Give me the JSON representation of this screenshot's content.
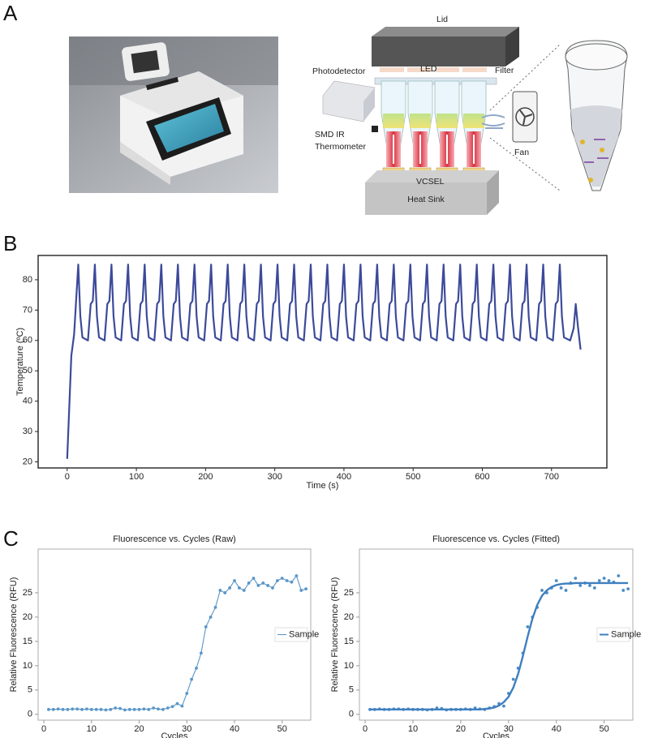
{
  "figure": {
    "panels": [
      "A",
      "B",
      "C"
    ],
    "diagram": {
      "lid": "Lid",
      "led": "LED",
      "filter": "Filter",
      "photodetector": "Photodetector",
      "thermometer": [
        "SMD IR",
        "Thermometer"
      ],
      "fan": "Fan",
      "vcsel": "VCSEL",
      "heat_sink": "Heat Sink"
    }
  },
  "chart_data": [
    {
      "type": "line",
      "xlabel": "Time (s)",
      "ylabel": "Temperature (ºC)",
      "xlim": [
        -42,
        780
      ],
      "xticks": [
        0,
        100,
        200,
        300,
        400,
        500,
        600,
        700
      ],
      "ylim": [
        18,
        88
      ],
      "yticks": [
        20,
        30,
        40,
        50,
        60,
        70,
        80
      ],
      "x": [
        0,
        6,
        10,
        16,
        19,
        22,
        30,
        34,
        37,
        40,
        43,
        46,
        54,
        58,
        61,
        64,
        67,
        70,
        78,
        82,
        85,
        88,
        91,
        94,
        102,
        106,
        109,
        112,
        115,
        118,
        126,
        130,
        133,
        136,
        139,
        142,
        150,
        154,
        157,
        160,
        163,
        166,
        174,
        178,
        181,
        184,
        187,
        190,
        198,
        202,
        205,
        208,
        211,
        214,
        222,
        226,
        229,
        232,
        235,
        238,
        246,
        250,
        253,
        256,
        259,
        262,
        270,
        274,
        277,
        280,
        283,
        286,
        294,
        298,
        301,
        304,
        307,
        310,
        318,
        322,
        325,
        328,
        331,
        334,
        342,
        346,
        349,
        352,
        355,
        358,
        366,
        370,
        373,
        376,
        379,
        382,
        390,
        394,
        397,
        400,
        403,
        406,
        414,
        418,
        421,
        424,
        427,
        430,
        438,
        442,
        445,
        448,
        451,
        454,
        462,
        466,
        469,
        472,
        475,
        478,
        486,
        490,
        493,
        496,
        499,
        502,
        510,
        514,
        517,
        520,
        523,
        526,
        534,
        538,
        541,
        544,
        547,
        550,
        558,
        562,
        565,
        568,
        571,
        574,
        582,
        586,
        589,
        592,
        595,
        598,
        606,
        610,
        613,
        616,
        619,
        622,
        630,
        634,
        637,
        640,
        643,
        646,
        654,
        658,
        661,
        664,
        667,
        670,
        678,
        682,
        685,
        688,
        691,
        694,
        702,
        706,
        709,
        712,
        715,
        718,
        727,
        732,
        735,
        738,
        742
      ],
      "series": [
        {
          "color": "#3c4a9a",
          "line": true,
          "marker": false,
          "values": [
            21,
            55,
            62,
            85,
            68,
            61,
            60,
            72,
            73,
            85,
            68,
            61,
            60,
            72,
            73,
            85,
            68,
            61,
            60,
            72,
            73,
            85,
            68,
            61,
            60,
            72,
            73,
            85,
            68,
            61,
            60,
            72,
            73,
            85,
            68,
            61,
            60,
            72,
            73,
            85,
            68,
            61,
            60,
            72,
            73,
            85,
            68,
            61,
            60,
            72,
            73,
            85,
            68,
            61,
            60,
            72,
            73,
            85,
            68,
            61,
            60,
            72,
            73,
            85,
            68,
            61,
            60,
            72,
            73,
            85,
            68,
            61,
            60,
            72,
            73,
            85,
            68,
            61,
            60,
            72,
            73,
            85,
            68,
            61,
            60,
            72,
            73,
            85,
            68,
            61,
            60,
            72,
            73,
            85,
            68,
            61,
            60,
            72,
            73,
            85,
            68,
            61,
            60,
            72,
            73,
            85,
            68,
            61,
            60,
            72,
            73,
            85,
            68,
            61,
            60,
            72,
            73,
            85,
            68,
            61,
            60,
            72,
            73,
            85,
            68,
            61,
            60,
            72,
            73,
            85,
            68,
            61,
            60,
            72,
            73,
            85,
            68,
            61,
            60,
            72,
            73,
            85,
            68,
            61,
            60,
            72,
            73,
            85,
            68,
            61,
            60,
            72,
            73,
            85,
            68,
            61,
            60,
            72,
            73,
            85,
            68,
            61,
            60,
            72,
            73,
            85,
            68,
            61,
            60,
            72,
            73,
            85,
            68,
            61,
            60,
            72,
            73,
            85,
            68,
            61,
            60,
            64,
            72,
            65,
            57
          ]
        }
      ]
    },
    {
      "type": "line",
      "title": "Fluorescence vs. Cycles (Raw)",
      "xlabel": "Cycles",
      "ylabel": "Relative Fluorescence (RFU)",
      "xlim": [
        -1.2,
        56
      ],
      "xticks": [
        0,
        10,
        20,
        30,
        40,
        50
      ],
      "ylim": [
        -1.2,
        34
      ],
      "yticks": [
        0,
        5,
        10,
        15,
        20,
        25
      ],
      "legend": "center right",
      "x": [
        1,
        2,
        3,
        4,
        5,
        6,
        7,
        8,
        9,
        10,
        11,
        12,
        13,
        14,
        15,
        16,
        17,
        18,
        19,
        20,
        21,
        22,
        23,
        24,
        25,
        26,
        27,
        28,
        29,
        30,
        31,
        32,
        33,
        34,
        35,
        36,
        37,
        38,
        39,
        40,
        41,
        42,
        43,
        44,
        45,
        46,
        47,
        48,
        49,
        50,
        51,
        52,
        53,
        54,
        55
      ],
      "series": [
        {
          "name": "Sample",
          "color": "#5a96c8",
          "line": true,
          "marker": true,
          "values": [
            1.0,
            1.0,
            1.1,
            1.0,
            1.0,
            1.1,
            1.1,
            1.0,
            1.1,
            1.0,
            1.0,
            1.0,
            0.9,
            1.0,
            1.3,
            1.2,
            0.9,
            1.0,
            1.0,
            1.0,
            1.1,
            1.0,
            1.3,
            1.1,
            1.0,
            1.3,
            1.6,
            2.2,
            1.7,
            4.3,
            7.2,
            9.5,
            12.6,
            18,
            20,
            22,
            25.5,
            25,
            26,
            27.5,
            26,
            25.5,
            27,
            28,
            26.5,
            27,
            26.5,
            26,
            27.5,
            28,
            27.5,
            27.2,
            28.5,
            25.5,
            25.8
          ]
        }
      ]
    },
    {
      "type": "line",
      "title": "Fluorescence vs. Cycles (Fitted)",
      "xlabel": "Cycles",
      "ylabel": "Relative Fluorescence (RFU)",
      "xlim": [
        -1.2,
        56
      ],
      "xticks": [
        0,
        10,
        20,
        30,
        40,
        50
      ],
      "ylim": [
        -1.2,
        34
      ],
      "yticks": [
        0,
        5,
        10,
        15,
        20,
        25
      ],
      "legend": "center right",
      "x": [
        1,
        2,
        3,
        4,
        5,
        6,
        7,
        8,
        9,
        10,
        11,
        12,
        13,
        14,
        15,
        16,
        17,
        18,
        19,
        20,
        21,
        22,
        23,
        24,
        25,
        26,
        27,
        28,
        29,
        30,
        31,
        32,
        33,
        34,
        35,
        36,
        37,
        38,
        39,
        40,
        41,
        42,
        43,
        44,
        45,
        46,
        47,
        48,
        49,
        50,
        51,
        52,
        53,
        54,
        55
      ],
      "series": [
        {
          "color": "#4a8cc6",
          "line": false,
          "marker": true,
          "values": [
            1.0,
            1.0,
            1.1,
            1.0,
            1.0,
            1.1,
            1.1,
            1.0,
            1.1,
            1.0,
            1.0,
            1.0,
            0.9,
            1.0,
            1.3,
            1.2,
            0.9,
            1.0,
            1.0,
            1.0,
            1.1,
            1.0,
            1.3,
            1.1,
            1.0,
            1.3,
            1.6,
            2.2,
            1.7,
            4.3,
            7.2,
            9.5,
            12.6,
            18,
            20,
            22,
            25.5,
            25,
            26,
            27.5,
            26,
            25.5,
            27,
            28,
            26.5,
            27,
            26.5,
            26,
            27.5,
            28,
            27.5,
            27.2,
            28.5,
            25.5,
            25.8
          ]
        },
        {
          "name": "Sample",
          "color": "#3f7fbf",
          "line": true,
          "marker": false,
          "values": [
            1.0,
            1.0,
            1.0,
            1.0,
            1.0,
            1.0,
            1.0,
            1.0,
            1.0,
            1.0,
            1.0,
            1.0,
            1.0,
            1.0,
            1.0,
            1.0,
            1.0,
            1.0,
            1.0,
            1.0,
            1.0,
            1.0,
            1.0,
            1.0,
            1.1,
            1.2,
            1.4,
            1.8,
            2.5,
            3.6,
            5.5,
            8.3,
            12.0,
            16.0,
            19.7,
            22.5,
            24.4,
            25.5,
            26.2,
            26.6,
            26.8,
            26.9,
            26.9,
            27.0,
            27.0,
            27.0,
            27.0,
            27.0,
            27.0,
            27.0,
            27.0,
            27.0,
            27.0,
            27.0,
            27.0
          ]
        }
      ]
    }
  ]
}
